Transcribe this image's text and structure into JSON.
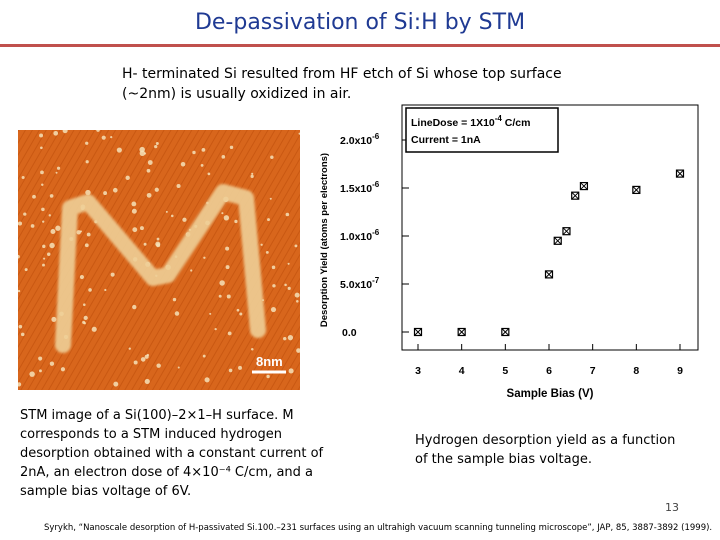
{
  "slide": {
    "title": "De-passivation of Si:H by STM",
    "intro": "H- terminated Si resulted from HF etch of Si whose top surface (~2nm) is usually oxidized in air.",
    "image_scale_label": "8nm",
    "caption_left": "STM image of a Si(100)–2×1–H surface. M corresponds to a STM induced hydrogen desorption obtained with a constant current of 2nA, an electron dose of 4×10⁻⁴ C/cm, and a sample bias voltage of 6V.",
    "caption_right": "Hydrogen desorption yield as a function of the sample bias voltage.",
    "page_number": "13",
    "reference": "Syrykh, “Nanoscale desorption of H-passivated Si.100.–231 surfaces using an ultrahigh vacuum scanning tunneling microscope”, JAP, 85, 3887-3892 (1999).",
    "colors": {
      "title": "#1f3a93",
      "rule": "#c0504d",
      "stm_bg": "#d8661c"
    }
  },
  "chart_data": {
    "type": "scatter",
    "xlabel": "Sample Bias (V)",
    "ylabel": "Desorption Yield (atoms per electrons)",
    "xlim": [
      3,
      9
    ],
    "ylim": [
      0,
      2e-06
    ],
    "x_ticks": [
      "3",
      "4",
      "5",
      "6",
      "7",
      "8",
      "9"
    ],
    "y_ticks": [
      {
        "mant": "2.0x10",
        "exp": "-6",
        "value": 2e-06
      },
      {
        "mant": "1.5x10",
        "exp": "-6",
        "value": 1.5e-06
      },
      {
        "mant": "1.0x10",
        "exp": "-6",
        "value": 1e-06
      },
      {
        "mant": "5.0x10",
        "exp": "-7",
        "value": 5e-07
      },
      {
        "mant": "0.0",
        "exp": "",
        "value": 0
      }
    ],
    "legend": {
      "line1_pre": "LineDose = 1X10",
      "line1_exp": "-4",
      "line1_post": " C/cm",
      "line2": "Current = 1nA",
      "placement": "top-left"
    },
    "points": [
      {
        "x": 3.0,
        "y": 0.0
      },
      {
        "x": 4.0,
        "y": 0.0
      },
      {
        "x": 5.0,
        "y": 0.0
      },
      {
        "x": 6.0,
        "y": 6e-07
      },
      {
        "x": 6.2,
        "y": 9.5e-07
      },
      {
        "x": 6.4,
        "y": 1.05e-06
      },
      {
        "x": 6.6,
        "y": 1.42e-06
      },
      {
        "x": 6.8,
        "y": 1.52e-06
      },
      {
        "x": 8.0,
        "y": 1.48e-06
      },
      {
        "x": 9.0,
        "y": 1.65e-06
      }
    ]
  }
}
